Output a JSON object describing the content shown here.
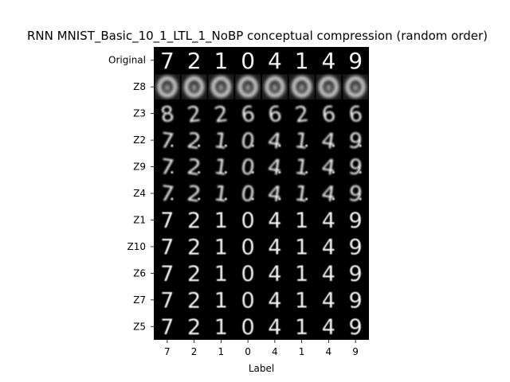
{
  "chart_data": {
    "type": "image_grid",
    "title": "RNN MNIST_Basic_10_1_LTL_1_NoBP conceptual compression (random order)",
    "xlabel": "Label",
    "ylabel": "",
    "row_labels": [
      "Original",
      "Z8",
      "Z3",
      "Z2",
      "Z9",
      "Z4",
      "Z1",
      "Z10",
      "Z6",
      "Z7",
      "Z5"
    ],
    "column_labels": [
      "7",
      "2",
      "1",
      "0",
      "4",
      "1",
      "4",
      "9"
    ],
    "row_styles": [
      "sharp",
      "blob",
      "ambiguous",
      "noisy",
      "noisy",
      "noisy",
      "soft",
      "soft",
      "soft",
      "soft",
      "soft"
    ],
    "ambiguous_row_glyphs": [
      "8",
      "2",
      "2",
      "6",
      "6",
      "2",
      "6",
      "6"
    ],
    "background": "#000000",
    "foreground": "#ffffff"
  }
}
